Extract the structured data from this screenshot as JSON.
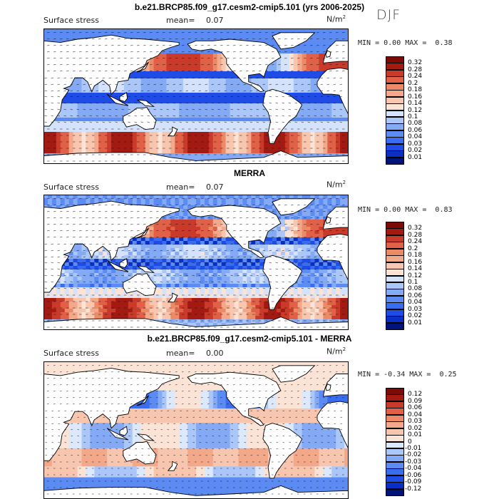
{
  "season": "DJF",
  "panels": [
    {
      "title": "b.e21.BRCP85.f09_g17.cesm2-cmip5.101 (yrs 2006-2025)",
      "variable": "Surface stress",
      "mean_label": "mean=",
      "mean": "0.07",
      "units": "N/m",
      "units_sup": "2",
      "min_label": "MIN =",
      "min": "0.00",
      "max_label": "MAX =",
      "max": "0.38",
      "type": "abs"
    },
    {
      "title": "MERRA",
      "variable": "Surface stress",
      "mean_label": "mean=",
      "mean": "0.07",
      "units": "N/m",
      "units_sup": "2",
      "min_label": "MIN =",
      "min": "0.00",
      "max_label": "MAX =",
      "max": "0.83",
      "type": "abs"
    },
    {
      "title": "b.e21.BRCP85.f09_g17.cesm2-cmip5.101 - MERRA",
      "variable": "Surface stress",
      "mean_label": "mean=",
      "mean": "0.00",
      "units": "N/m",
      "units_sup": "2",
      "min_label": "MIN =",
      "min": "-0.34",
      "max_label": "MAX =",
      "max": "0.25",
      "type": "diff"
    }
  ],
  "chart_data": [
    {
      "type": "heatmap",
      "title": "b.e21.BRCP85.f09_g17.cesm2-cmip5.101 (yrs 2006-2025)",
      "subtitle": "Surface stress",
      "units": "N/m2",
      "mean": 0.07,
      "min": 0.0,
      "max": 0.38,
      "colorbar_levels": [
        "0.01",
        "0.02",
        "0.03",
        "0.04",
        "0.06",
        "0.08",
        "0.1",
        "0.12",
        "0.14",
        "0.16",
        "0.18",
        "0.2",
        "0.24",
        "0.28",
        "0.32"
      ],
      "colorbar_colors": [
        "#00137a",
        "#0a2fc4",
        "#1f4ce6",
        "#3a6cf0",
        "#5b8bf3",
        "#84aaf6",
        "#abc6f8",
        "#d4e3fb",
        "#fbe3d6",
        "#f8c6af",
        "#f3a88a",
        "#ec8a68",
        "#e06147",
        "#c93a2a",
        "#a31a12",
        "#7c0a06"
      ],
      "vectors": "wind stress arrows"
    },
    {
      "type": "heatmap",
      "title": "MERRA",
      "subtitle": "Surface stress",
      "units": "N/m2",
      "mean": 0.07,
      "min": 0.0,
      "max": 0.83,
      "colorbar_levels": [
        "0.01",
        "0.02",
        "0.03",
        "0.04",
        "0.06",
        "0.08",
        "0.1",
        "0.12",
        "0.14",
        "0.16",
        "0.18",
        "0.2",
        "0.24",
        "0.28",
        "0.32"
      ],
      "colorbar_colors": [
        "#00137a",
        "#0a2fc4",
        "#1f4ce6",
        "#3a6cf0",
        "#5b8bf3",
        "#84aaf6",
        "#abc6f8",
        "#d4e3fb",
        "#fbe3d6",
        "#f8c6af",
        "#f3a88a",
        "#ec8a68",
        "#e06147",
        "#c93a2a",
        "#a31a12",
        "#7c0a06"
      ],
      "vectors": "wind stress arrows"
    },
    {
      "type": "heatmap",
      "title": "b.e21.BRCP85.f09_g17.cesm2-cmip5.101 - MERRA",
      "subtitle": "Surface stress",
      "units": "N/m2",
      "mean": 0.0,
      "min": -0.34,
      "max": 0.25,
      "colorbar_levels": [
        "-0.12",
        "-0.09",
        "-0.06",
        "-0.04",
        "-0.03",
        "-0.02",
        "-0.01",
        "0",
        "0.01",
        "0.02",
        "0.03",
        "0.04",
        "0.06",
        "0.09",
        "0.12"
      ],
      "colorbar_colors": [
        "#00137a",
        "#0a2fc4",
        "#1f4ce6",
        "#3a6cf0",
        "#5b8bf3",
        "#84aaf6",
        "#abc6f8",
        "#dce8fb",
        "#fbe3d6",
        "#f8c6af",
        "#f3a88a",
        "#ec8a68",
        "#e06147",
        "#c93a2a",
        "#a31a12",
        "#7c0a06"
      ],
      "vectors": "wind stress difference arrows"
    }
  ]
}
